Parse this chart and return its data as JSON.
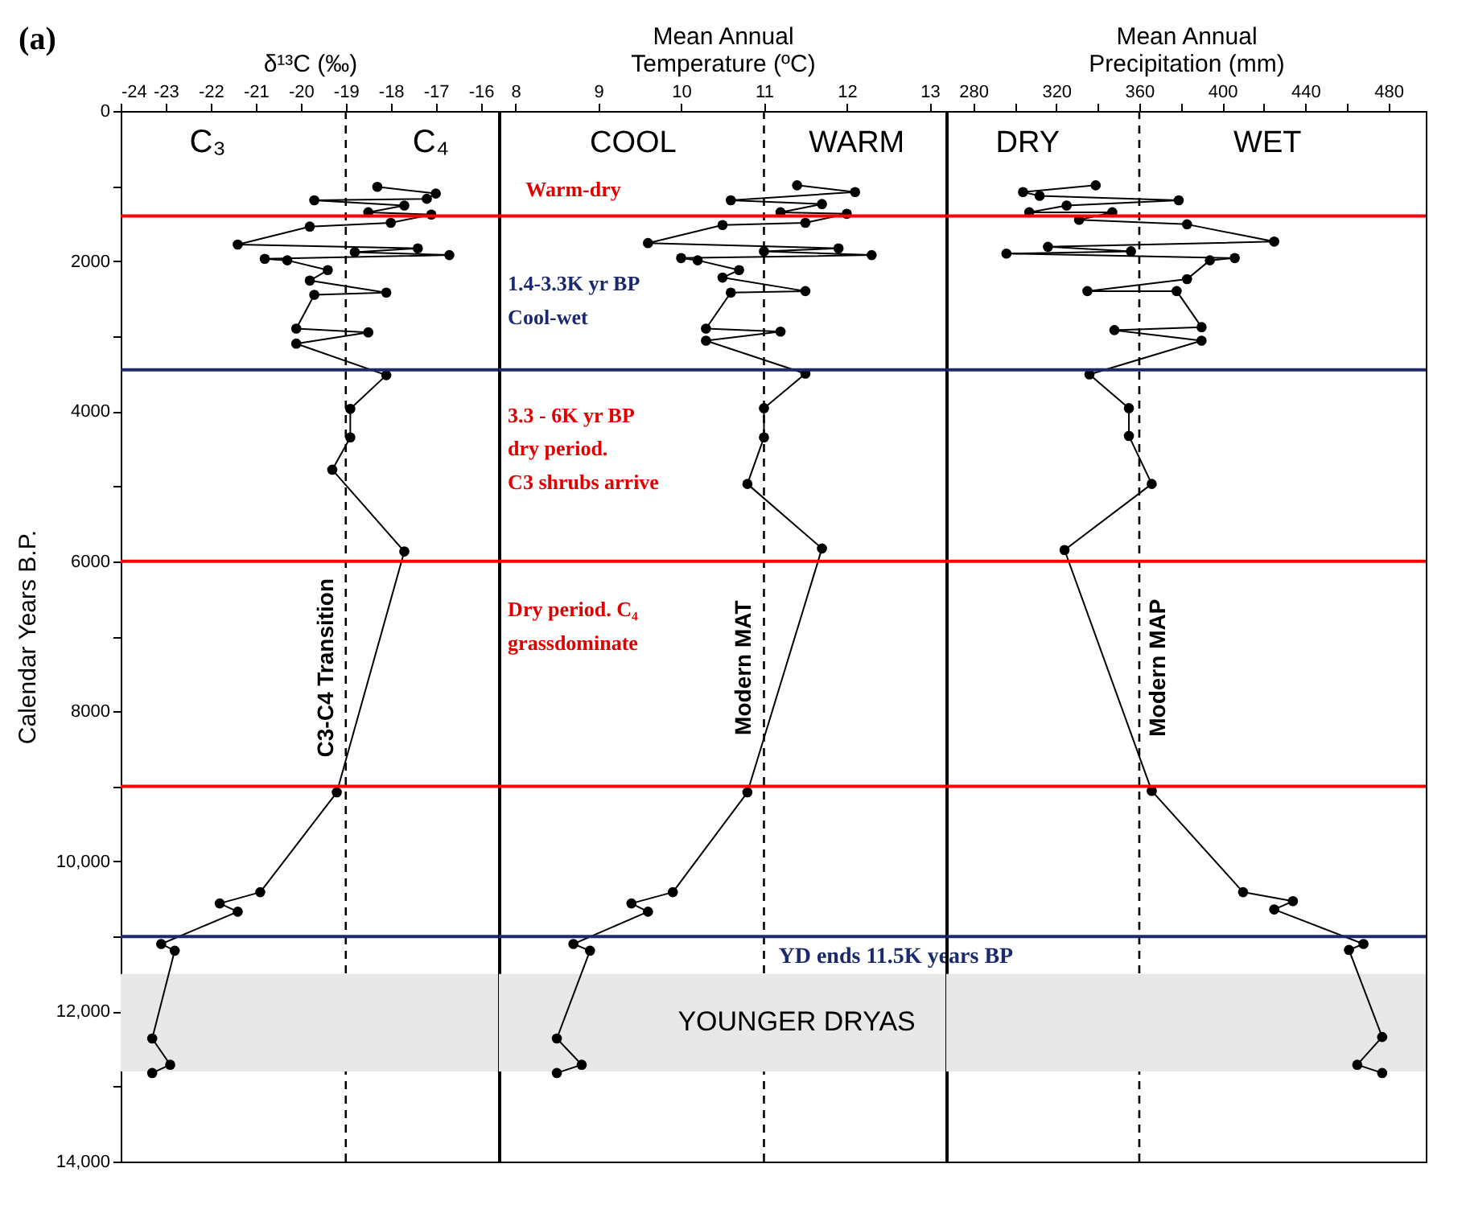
{
  "chart_data": [
    {
      "type": "line",
      "xlabel": "δ¹³C (‰)",
      "ylabel": "Calendar Years B.P.",
      "color": "#000000",
      "marker": "circle",
      "x": [
        -18.3,
        -17.0,
        -17.2,
        -19.7,
        -17.7,
        -18.5,
        -17.1,
        -18.0,
        -19.8,
        -21.4,
        -17.4,
        -18.8,
        -16.7,
        -20.8,
        -20.3,
        -19.4,
        -19.8,
        -18.1,
        -19.7,
        -20.1,
        -18.5,
        -20.1,
        -18.1,
        -18.9,
        -18.9,
        -19.3,
        -17.7,
        -19.2,
        -20.9,
        -21.8,
        -21.4,
        -23.1,
        -22.8,
        -23.3,
        -22.9,
        -23.3
      ],
      "values": [
        1010,
        1100,
        1170,
        1190,
        1260,
        1350,
        1380,
        1490,
        1540,
        1780,
        1830,
        1880,
        1920,
        1970,
        1990,
        2120,
        2260,
        2420,
        2450,
        2900,
        2950,
        3100,
        3520,
        3970,
        4350,
        4780,
        5870,
        9080,
        10410,
        10560,
        10670,
        11100,
        11190,
        12360,
        12710,
        12820
      ],
      "xlim": [
        -24,
        -15.6
      ],
      "xticks": [
        -24,
        -23,
        -22,
        -21,
        -20,
        -19,
        -18,
        -17,
        -16
      ],
      "ylim": [
        14000,
        0
      ],
      "yticks": [
        0,
        {
          "value": 1000,
          "label": null
        },
        2000,
        {
          "value": 3000,
          "label": null
        },
        4000,
        {
          "value": 5000,
          "label": null
        },
        6000,
        {
          "value": 7000,
          "label": null
        },
        8000,
        {
          "value": 9000,
          "label": null
        },
        {
          "value": 10000,
          "label": "10,000"
        },
        {
          "value": 11000,
          "label": null
        },
        {
          "value": 12000,
          "label": "12,000"
        },
        {
          "value": 13000,
          "label": null
        },
        {
          "value": 14000,
          "label": "14,000"
        }
      ],
      "ref_lines": [
        {
          "axis": "x",
          "value": -19,
          "label": "C3-C4 Transition",
          "color": "#000000",
          "line_style": "dashed"
        },
        {
          "axis": "y",
          "value": 1400,
          "color": "#ff0000"
        },
        {
          "axis": "y",
          "value": 3450,
          "color": "#1a2a6c"
        },
        {
          "axis": "y",
          "value": 6000,
          "color": "#ff0000"
        },
        {
          "axis": "y",
          "value": 9000,
          "color": "#ff0000"
        },
        {
          "axis": "y",
          "value": 11000,
          "color": "#1a2a6c"
        }
      ],
      "bands": [
        {
          "axis": "y",
          "from": 11500,
          "to": 12800,
          "color": "#e8e8e8"
        }
      ],
      "annotations": [
        "(a)",
        "C₃",
        "C₄"
      ]
    },
    {
      "type": "line",
      "xlabel": "Mean Annual\nTemperature (ºC)",
      "color": "#000000",
      "marker": "circle",
      "tick_labels": "x",
      "x": [
        11.4,
        12.1,
        10.6,
        11.7,
        11.2,
        12.0,
        11.5,
        10.5,
        9.6,
        11.9,
        11.0,
        12.3,
        10.0,
        10.2,
        10.7,
        10.5,
        11.5,
        10.6,
        10.3,
        11.2,
        10.3,
        11.5,
        11.0,
        11.0,
        10.8,
        11.7,
        10.8,
        9.9,
        9.4,
        9.6,
        8.7,
        8.9,
        8.5,
        8.8,
        8.5
      ],
      "values": [
        990,
        1080,
        1190,
        1240,
        1350,
        1370,
        1490,
        1520,
        1760,
        1830,
        1870,
        1920,
        1960,
        1990,
        2120,
        2220,
        2400,
        2420,
        2900,
        2940,
        3060,
        3500,
        3960,
        4350,
        4970,
        5830,
        9080,
        10410,
        10560,
        10670,
        11100,
        11190,
        12360,
        12710,
        12820
      ],
      "xlim": [
        7.8,
        13.2
      ],
      "xticks": [
        8,
        9,
        10,
        11,
        12,
        13
      ],
      "ylim": [
        14000,
        0
      ],
      "ref_lines": [
        {
          "axis": "x",
          "value": 11,
          "label": "Modern MAT",
          "color": "#000000",
          "line_style": "dashed"
        },
        {
          "axis": "y",
          "value": 1400,
          "color": "#ff0000"
        },
        {
          "axis": "y",
          "value": 3450,
          "color": "#1a2a6c"
        },
        {
          "axis": "y",
          "value": 6000,
          "color": "#ff0000"
        },
        {
          "axis": "y",
          "value": 9000,
          "color": "#ff0000"
        },
        {
          "axis": "y",
          "value": 11000,
          "color": "#1a2a6c"
        }
      ],
      "bands": [
        {
          "axis": "y",
          "from": 11500,
          "to": 12800,
          "color": "#e8e8e8",
          "label": "YOUNGER DRYAS"
        }
      ],
      "annotations": [
        "COOL",
        "WARM",
        "Warm-dry",
        "1.4-3.3K yr BP\nCool-wet",
        "3.3 - 6K yr BP\ndry period.\nC3 shrubs arrive",
        "Dry period. C₄\ngrassdominate",
        "YD ends 11.5K years BP"
      ]
    },
    {
      "type": "line",
      "xlabel": "Mean Annual\nPrecipitation (mm)",
      "color": "#000000",
      "marker": "circle",
      "tick_labels": "x",
      "x": [
        339,
        304,
        312,
        379,
        325,
        307,
        347,
        331,
        383,
        425,
        316,
        356,
        296,
        406,
        394,
        383,
        335,
        378,
        390,
        348,
        390,
        336,
        355,
        355,
        366,
        324,
        366,
        410,
        434,
        425,
        468,
        461,
        477,
        465,
        477
      ],
      "values": [
        990,
        1080,
        1130,
        1190,
        1260,
        1350,
        1350,
        1450,
        1510,
        1740,
        1810,
        1870,
        1900,
        1960,
        1990,
        2240,
        2400,
        2400,
        2880,
        2920,
        3060,
        3510,
        3960,
        4330,
        4970,
        5850,
        9060,
        10410,
        10530,
        10640,
        11100,
        11180,
        12340,
        12710,
        12820
      ],
      "xlim": [
        267,
        498
      ],
      "xticks": [
        280,
        {
          "value": 300,
          "label": null
        },
        320,
        {
          "value": 340,
          "label": null
        },
        360,
        {
          "value": 380,
          "label": null
        },
        400,
        {
          "value": 420,
          "label": null
        },
        440,
        {
          "value": 460,
          "label": null
        },
        480
      ],
      "ylim": [
        14000,
        0
      ],
      "ref_lines": [
        {
          "axis": "x",
          "value": 360,
          "label": "Modern MAP",
          "color": "#000000",
          "line_style": "dashed"
        },
        {
          "axis": "y",
          "value": 1400,
          "color": "#ff0000"
        },
        {
          "axis": "y",
          "value": 3450,
          "color": "#1a2a6c"
        },
        {
          "axis": "y",
          "value": 6000,
          "color": "#ff0000"
        },
        {
          "axis": "y",
          "value": 9000,
          "color": "#ff0000"
        },
        {
          "axis": "y",
          "value": 11000,
          "color": "#1a2a6c"
        }
      ],
      "bands": [
        {
          "axis": "y",
          "from": 11500,
          "to": 12800,
          "color": "#e8e8e8"
        }
      ],
      "annotations": [
        "DRY",
        "WET"
      ]
    }
  ]
}
